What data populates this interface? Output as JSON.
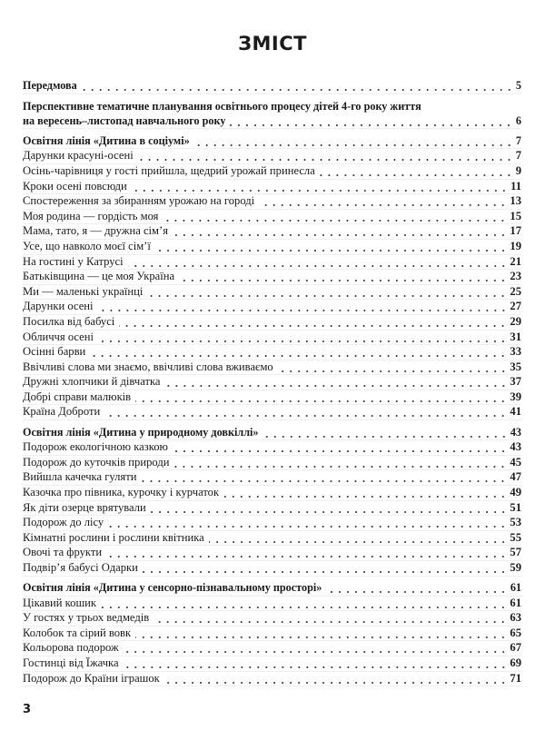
{
  "title": "ЗМІСТ",
  "page_number": "3",
  "groups": [
    {
      "entries": [
        {
          "text": "Передмова",
          "page": "5",
          "bold": true
        }
      ]
    },
    {
      "entries": [
        {
          "text": "Перспективне тематичне планування освітнього процесу дітей 4-го року життя",
          "page": "",
          "bold": true
        },
        {
          "text": "на вересень–листопад навчального року",
          "page": "6",
          "bold": true
        }
      ]
    },
    {
      "entries": [
        {
          "text": "Освітня лінія «Дитина в соціумі»",
          "page": "7",
          "bold": true
        },
        {
          "text": "Дарунки красуні-осені",
          "page": "7"
        },
        {
          "text": "Осінь-чарівниця у гості прийшла, щедрий урожай принесла",
          "page": "9"
        },
        {
          "text": "Кроки осені повсюди",
          "page": "11"
        },
        {
          "text": "Спостереження за збиранням урожаю на городі",
          "page": "13"
        },
        {
          "text": "Моя родина — гордість моя",
          "page": "15"
        },
        {
          "text": "Мама, тато, я — дружна сім’я",
          "page": "17"
        },
        {
          "text": "Усе, що навколо моєї сім’ї",
          "page": "19"
        },
        {
          "text": "На гостині у Катрусі",
          "page": "21"
        },
        {
          "text": "Батьківщина — це моя Україна",
          "page": "23"
        },
        {
          "text": "Ми — маленькі українці",
          "page": "25"
        },
        {
          "text": "Дарунки осені",
          "page": "27"
        },
        {
          "text": "Посилка від бабусі",
          "page": "29"
        },
        {
          "text": "Обличчя осені",
          "page": "31"
        },
        {
          "text": "Осінні барви",
          "page": "33"
        },
        {
          "text": "Ввічливі слова ми знаємо, ввічливі слова вживаємо",
          "page": "35"
        },
        {
          "text": "Дружні хлопчики й дівчатка",
          "page": "37"
        },
        {
          "text": "Добрі справи малюків",
          "page": "39"
        },
        {
          "text": "Країна Доброти",
          "page": "41"
        }
      ]
    },
    {
      "entries": [
        {
          "text": "Освітня лінія «Дитина у природному довкіллі»",
          "page": "43",
          "bold": true
        },
        {
          "text": "Подорож екологічною казкою",
          "page": "43"
        },
        {
          "text": "Подорож до куточків природи",
          "page": "45"
        },
        {
          "text": "Вийшла качечка гуляти",
          "page": "47"
        },
        {
          "text": "Казочка про півника, курочку і курчаток",
          "page": "49"
        },
        {
          "text": "Як діти озерце врятували",
          "page": "51"
        },
        {
          "text": "Подорож до лісу",
          "page": "53"
        },
        {
          "text": "Кімнатні рослини і рослини квітника",
          "page": "55"
        },
        {
          "text": "Овочі та фрукти",
          "page": "57"
        },
        {
          "text": "Подвір’я бабусі Одарки",
          "page": "59"
        }
      ]
    },
    {
      "entries": [
        {
          "text": "Освітня лінія «Дитина у сенсорно-пізнавальному просторі»",
          "page": "61",
          "bold": true
        },
        {
          "text": "Цікавий кошик",
          "page": "61"
        },
        {
          "text": "У гостях у трьох ведмедів",
          "page": "63"
        },
        {
          "text": "Колобок та сірий вовк",
          "page": "65"
        },
        {
          "text": "Кольорова подорож",
          "page": "67"
        },
        {
          "text": "Гостинці від Їжачка",
          "page": "69"
        },
        {
          "text": "Подорож до Країни іграшок",
          "page": "71"
        }
      ]
    }
  ]
}
